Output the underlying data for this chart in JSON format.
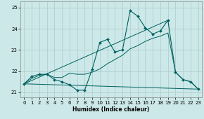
{
  "xlabel": "Humidex (Indice chaleur)",
  "xlim": [
    -0.5,
    23.5
  ],
  "ylim": [
    20.75,
    25.3
  ],
  "yticks": [
    21,
    22,
    23,
    24,
    25
  ],
  "xticks": [
    0,
    1,
    2,
    3,
    4,
    5,
    6,
    7,
    8,
    9,
    10,
    11,
    12,
    13,
    14,
    15,
    16,
    17,
    18,
    19,
    20,
    21,
    22,
    23
  ],
  "bg_color": "#cce8e8",
  "grid_color": "#b0d0d0",
  "line_color": "#006060",
  "series_main": {
    "x": [
      0,
      1,
      2,
      3,
      4,
      5,
      6,
      7,
      8,
      9,
      10,
      11,
      12,
      13,
      14,
      15,
      16,
      17,
      18,
      19,
      20,
      21,
      22,
      23
    ],
    "y": [
      21.4,
      21.75,
      21.85,
      21.85,
      21.6,
      21.5,
      21.35,
      21.1,
      21.1,
      22.1,
      23.35,
      23.5,
      22.9,
      23.0,
      24.85,
      24.6,
      24.05,
      23.75,
      23.9,
      24.4,
      21.95,
      21.6,
      21.5,
      21.15
    ]
  },
  "series_smooth": {
    "x": [
      0,
      1,
      2,
      3,
      4,
      5,
      6,
      7,
      8,
      9,
      10,
      11,
      12,
      13,
      14,
      15,
      16,
      17,
      18,
      19,
      20,
      21,
      22,
      23
    ],
    "y": [
      21.4,
      21.65,
      21.8,
      21.85,
      21.7,
      21.7,
      21.9,
      21.85,
      21.85,
      21.95,
      22.1,
      22.35,
      22.55,
      22.75,
      23.05,
      23.2,
      23.4,
      23.55,
      23.65,
      23.8,
      21.95,
      21.6,
      21.5,
      21.15
    ]
  },
  "series_line1": {
    "x": [
      0,
      19
    ],
    "y": [
      21.4,
      24.4
    ]
  },
  "series_line2": {
    "x": [
      0,
      23
    ],
    "y": [
      21.4,
      21.15
    ]
  }
}
